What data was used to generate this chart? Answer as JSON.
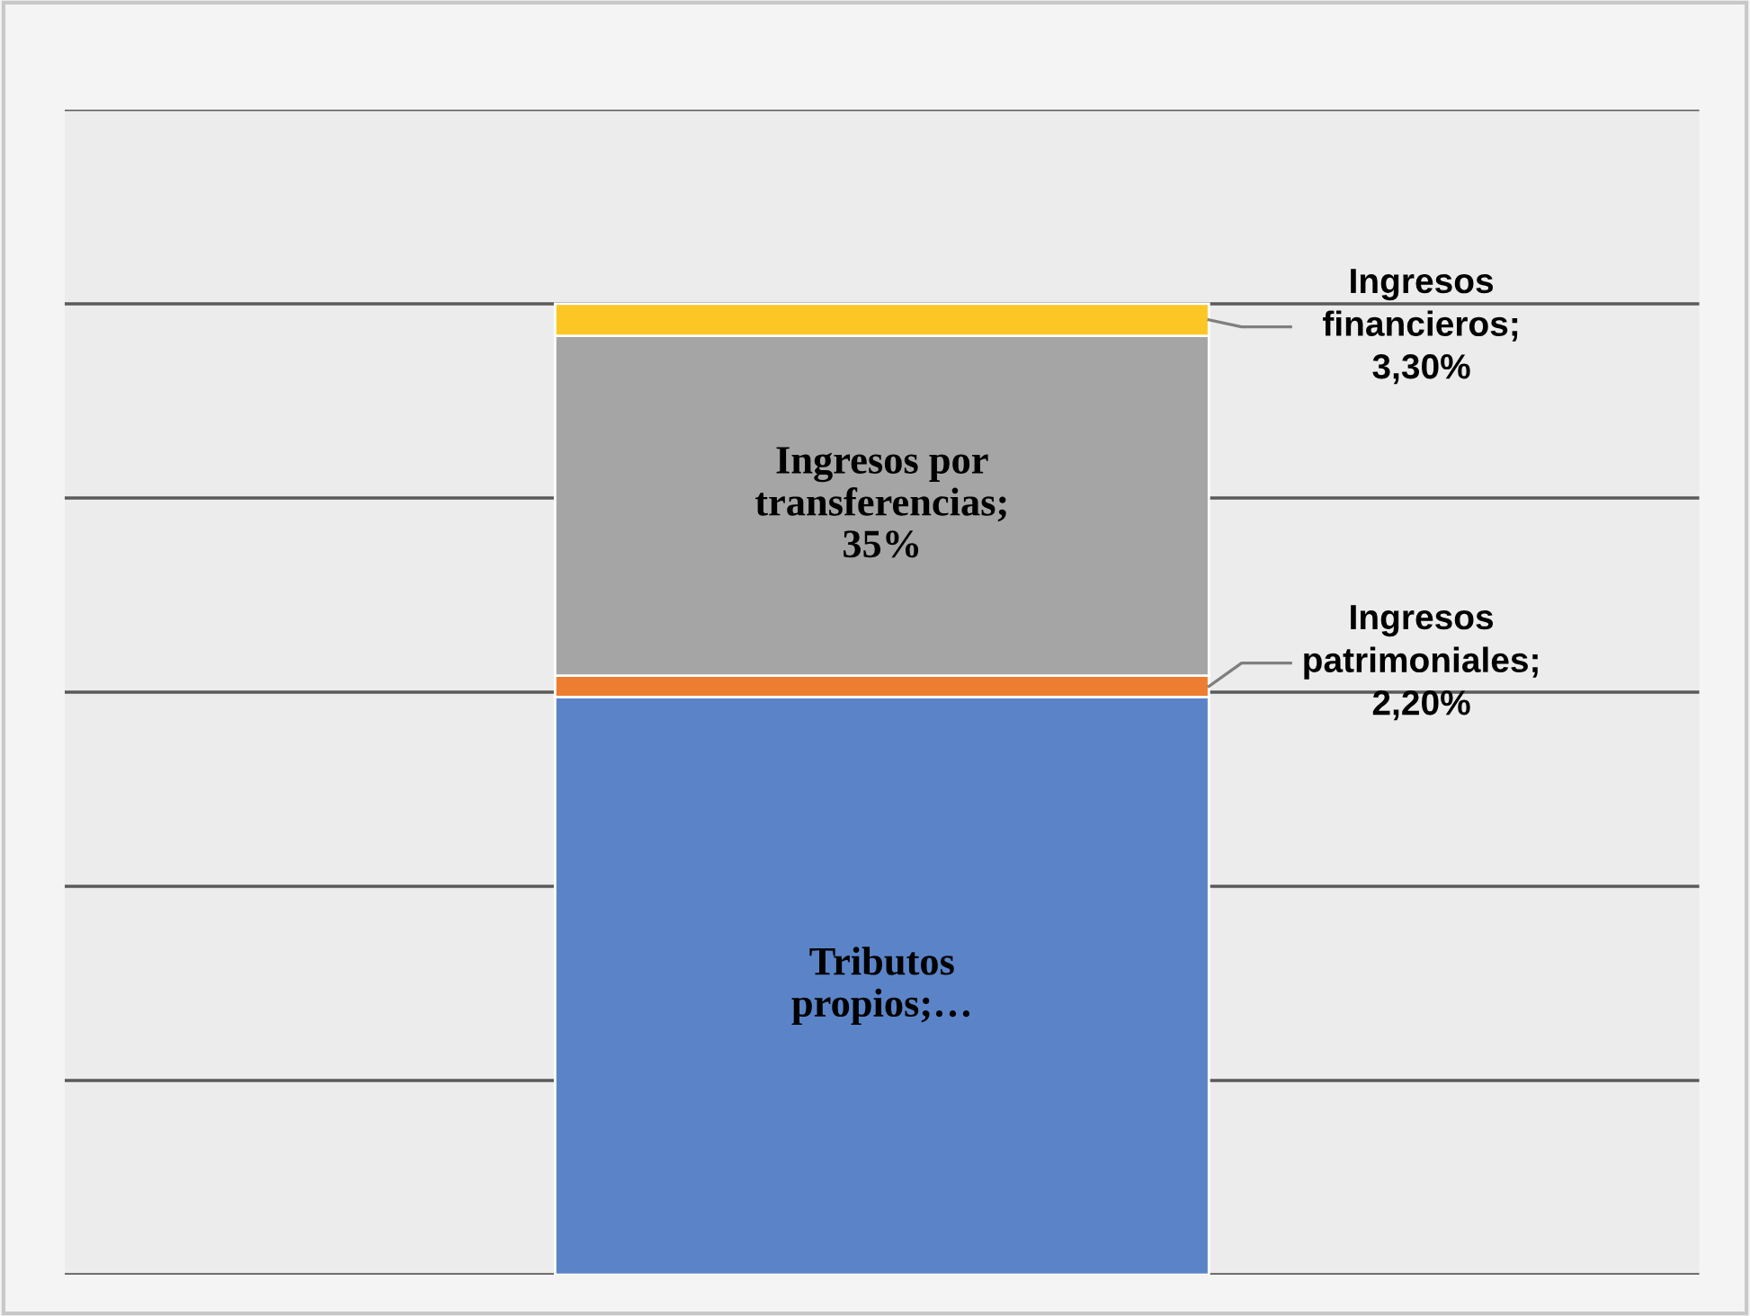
{
  "chart_data": {
    "type": "bar",
    "stacked": true,
    "categories": [
      null
    ],
    "series": [
      {
        "color": "#5b84c8",
        "values": [
          59.5
        ],
        "value_labels": [
          "Tributos propios;…"
        ]
      },
      {
        "color": "#ed7d31",
        "values": [
          2.2
        ],
        "value_labels": [
          "Ingresos patrimoniales; 2,20%"
        ]
      },
      {
        "color": "#a5a5a5",
        "values": [
          35
        ],
        "value_labels": [
          "Ingresos por transferencias; 35%"
        ]
      },
      {
        "color": "#fcc624",
        "values": [
          3.3
        ],
        "value_labels": [
          "Ingresos financieros; 3,30%"
        ]
      }
    ],
    "ylim": [
      0,
      120
    ],
    "yticks": [
      {
        "value": 0,
        "label": null
      },
      {
        "value": 20,
        "label": null
      },
      {
        "value": 40,
        "label": null
      },
      {
        "value": 60,
        "label": null
      },
      {
        "value": 80,
        "label": null
      },
      {
        "value": 100,
        "label": null
      },
      {
        "value": 120,
        "label": null
      }
    ],
    "grid": "y"
  }
}
